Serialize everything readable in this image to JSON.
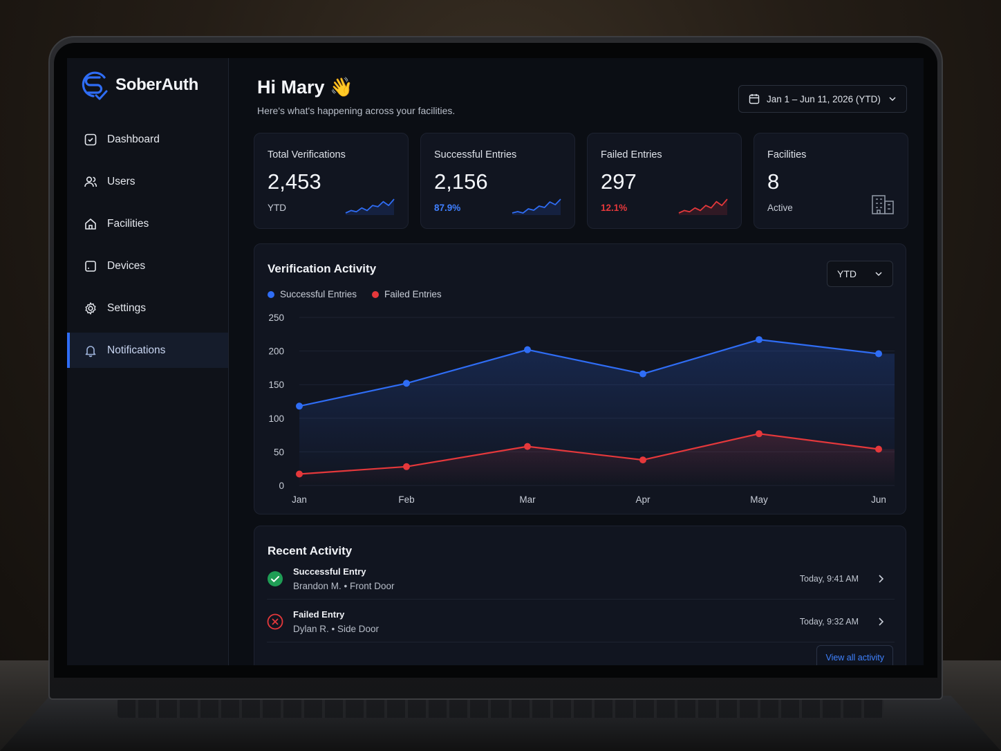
{
  "app": {
    "name": "SoberAuth"
  },
  "sidebar": {
    "items": [
      {
        "label": "Dashboard",
        "icon": "dashboard-icon",
        "active": false
      },
      {
        "label": "Users",
        "icon": "users-icon",
        "active": false
      },
      {
        "label": "Facilities",
        "icon": "home-icon",
        "active": false
      },
      {
        "label": "Devices",
        "icon": "device-icon",
        "active": false
      },
      {
        "label": "Settings",
        "icon": "gear-icon",
        "active": false
      },
      {
        "label": "Notifications",
        "icon": "bell-icon",
        "active": true
      }
    ]
  },
  "header": {
    "greeting": "Hi Mary 👋",
    "subtitle": "Here's what's happening across your facilities.",
    "date_range": "Jan 1 – Jun 11, 2026 (YTD)"
  },
  "cards": [
    {
      "label": "Total Verifications",
      "value": "2,453",
      "foot": "YTD",
      "foot_color": "#c7ccd6",
      "spark_color": "#2f6df5",
      "spark": [
        3,
        5,
        4,
        7,
        5,
        9,
        8,
        12,
        9,
        14
      ]
    },
    {
      "label": "Successful Entries",
      "value": "2,156",
      "foot": "87.9%",
      "foot_color": "#3f7fff",
      "spark_color": "#2f6df5",
      "spark": [
        3,
        4,
        3,
        6,
        5,
        8,
        7,
        11,
        9,
        13
      ]
    },
    {
      "label": "Failed Entries",
      "value": "297",
      "foot": "12.1%",
      "foot_color": "#e5383b",
      "spark_color": "#e5383b",
      "spark": [
        2,
        4,
        3,
        6,
        4,
        8,
        6,
        11,
        8,
        13
      ]
    },
    {
      "label": "Facilities",
      "value": "8",
      "foot": "Active",
      "foot_color": "#c7ccd6",
      "icon": "building-icon"
    }
  ],
  "activity_chart": {
    "title": "Verification Activity",
    "range_select": "YTD"
  },
  "chart_data": {
    "type": "line",
    "categories": [
      "Jan",
      "Feb",
      "Mar",
      "Apr",
      "May",
      "Jun"
    ],
    "series": [
      {
        "name": "Successful Entries",
        "color": "#2f6df5",
        "values": [
          118,
          152,
          202,
          166,
          217,
          196
        ]
      },
      {
        "name": "Failed Entries",
        "color": "#e5383b",
        "values": [
          17,
          28,
          58,
          38,
          77,
          54
        ]
      }
    ],
    "ylim": [
      0,
      250
    ],
    "yticks": [
      0,
      50,
      100,
      150,
      200,
      250
    ],
    "grid": true,
    "legend": "top-left"
  },
  "recent": {
    "title": "Recent Activity",
    "items": [
      {
        "title": "Successful Entry",
        "desc": "Brandon M. • Front Door",
        "time": "Today, 9:41 AM",
        "status": "success"
      },
      {
        "title": "Failed Entry",
        "desc": "Dylan R. • Side Door",
        "time": "Today, 9:32 AM",
        "status": "failed"
      }
    ],
    "view_all": "View all activity"
  }
}
